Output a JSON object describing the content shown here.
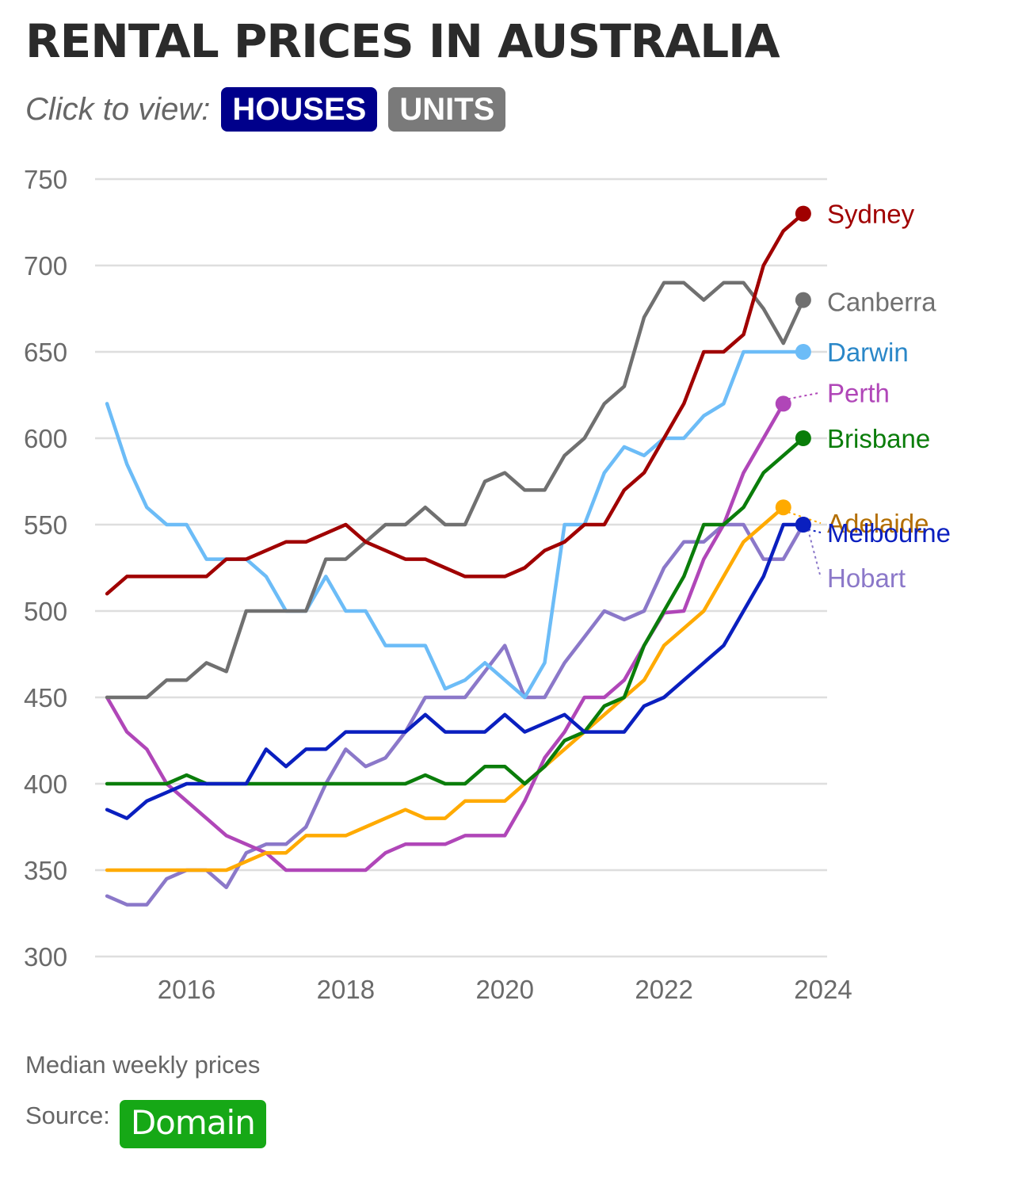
{
  "header": {
    "title": "RENTAL PRICES IN AUSTRALIA",
    "view_label": "Click to view:",
    "toggles": [
      {
        "label": "HOUSES",
        "color": "#00008b",
        "active": true
      },
      {
        "label": "UNITS",
        "color": "#7a7a7a",
        "active": false
      }
    ]
  },
  "footer": {
    "note": "Median weekly prices",
    "source_label": "Source:",
    "source_logo": "Domain",
    "source_color": "#16a816"
  },
  "chart_data": {
    "type": "line",
    "title": "RENTAL PRICES IN AUSTRALIA",
    "xlabel": "",
    "ylabel": "",
    "x_start": 2015.0,
    "x_step": 0.25,
    "xlim": [
      2014.85,
      2024.05
    ],
    "ylim": [
      300,
      750
    ],
    "y_ticks": [
      300,
      350,
      400,
      450,
      500,
      550,
      600,
      650,
      700,
      750
    ],
    "x_ticks": [
      2016,
      2018,
      2020,
      2022,
      2024
    ],
    "grid": true,
    "legend": "right, end of lines",
    "series": [
      {
        "name": "Hobart",
        "color": "#8b78c9",
        "label_color": "#8b78c9",
        "values": [
          335,
          330,
          330,
          345,
          350,
          350,
          340,
          360,
          365,
          365,
          375,
          400,
          420,
          410,
          415,
          430,
          450,
          450,
          450,
          465,
          480,
          450,
          450,
          470,
          485,
          500,
          495,
          500,
          525,
          540,
          540,
          550,
          550,
          530,
          530,
          550
        ]
      },
      {
        "name": "Perth",
        "color": "#b046b8",
        "label_color": "#b046b8",
        "values": [
          450,
          430,
          420,
          400,
          390,
          380,
          370,
          365,
          360,
          350,
          350,
          350,
          350,
          350,
          360,
          365,
          365,
          365,
          370,
          370,
          370,
          390,
          415,
          430,
          450,
          450,
          460,
          480,
          499,
          500,
          530,
          550,
          580,
          600,
          620
        ]
      },
      {
        "name": "Adelaide",
        "color": "#ffaa00",
        "label_color": "#b36e00",
        "values": [
          350,
          350,
          350,
          350,
          350,
          350,
          350,
          355,
          360,
          360,
          370,
          370,
          370,
          375,
          380,
          385,
          380,
          380,
          390,
          390,
          390,
          400,
          410,
          420,
          430,
          440,
          450,
          460,
          480,
          490,
          500,
          520,
          540,
          550,
          560
        ]
      },
      {
        "name": "Brisbane",
        "color": "#0a7d0a",
        "label_color": "#0a7d0a",
        "values": [
          400,
          400,
          400,
          400,
          405,
          400,
          400,
          400,
          400,
          400,
          400,
          400,
          400,
          400,
          400,
          400,
          405,
          400,
          400,
          410,
          410,
          400,
          410,
          425,
          430,
          445,
          450,
          480,
          500,
          520,
          550,
          550,
          560,
          580,
          590,
          600
        ]
      },
      {
        "name": "Melbourne",
        "color": "#0a1fbf",
        "label_color": "#0a1fbf",
        "values": [
          385,
          380,
          390,
          395,
          400,
          400,
          400,
          400,
          420,
          410,
          420,
          420,
          430,
          430,
          430,
          430,
          440,
          430,
          430,
          430,
          440,
          430,
          435,
          440,
          430,
          430,
          430,
          445,
          450,
          460,
          470,
          480,
          500,
          520,
          550,
          550
        ]
      },
      {
        "name": "Darwin",
        "color": "#6cbcf7",
        "label_color": "#2a87c8",
        "values": [
          620,
          585,
          560,
          550,
          550,
          530,
          530,
          530,
          520,
          500,
          500,
          520,
          500,
          500,
          480,
          480,
          480,
          455,
          460,
          470,
          460,
          450,
          470,
          550,
          550,
          580,
          595,
          590,
          600,
          600,
          613,
          620,
          650,
          650,
          650,
          650
        ]
      },
      {
        "name": "Canberra",
        "color": "#707070",
        "label_color": "#707070",
        "values": [
          450,
          450,
          450,
          460,
          460,
          470,
          465,
          500,
          500,
          500,
          500,
          530,
          530,
          540,
          550,
          550,
          560,
          550,
          550,
          575,
          580,
          570,
          570,
          590,
          600,
          620,
          630,
          670,
          690,
          690,
          680,
          690,
          690,
          675,
          655,
          680
        ]
      },
      {
        "name": "Sydney",
        "color": "#a00000",
        "label_color": "#a00000",
        "values": [
          510,
          520,
          520,
          520,
          520,
          520,
          530,
          530,
          535,
          540,
          540,
          545,
          550,
          540,
          535,
          530,
          530,
          525,
          520,
          520,
          520,
          525,
          535,
          540,
          550,
          550,
          570,
          580,
          600,
          620,
          650,
          650,
          660,
          700,
          720,
          730
        ]
      }
    ]
  }
}
